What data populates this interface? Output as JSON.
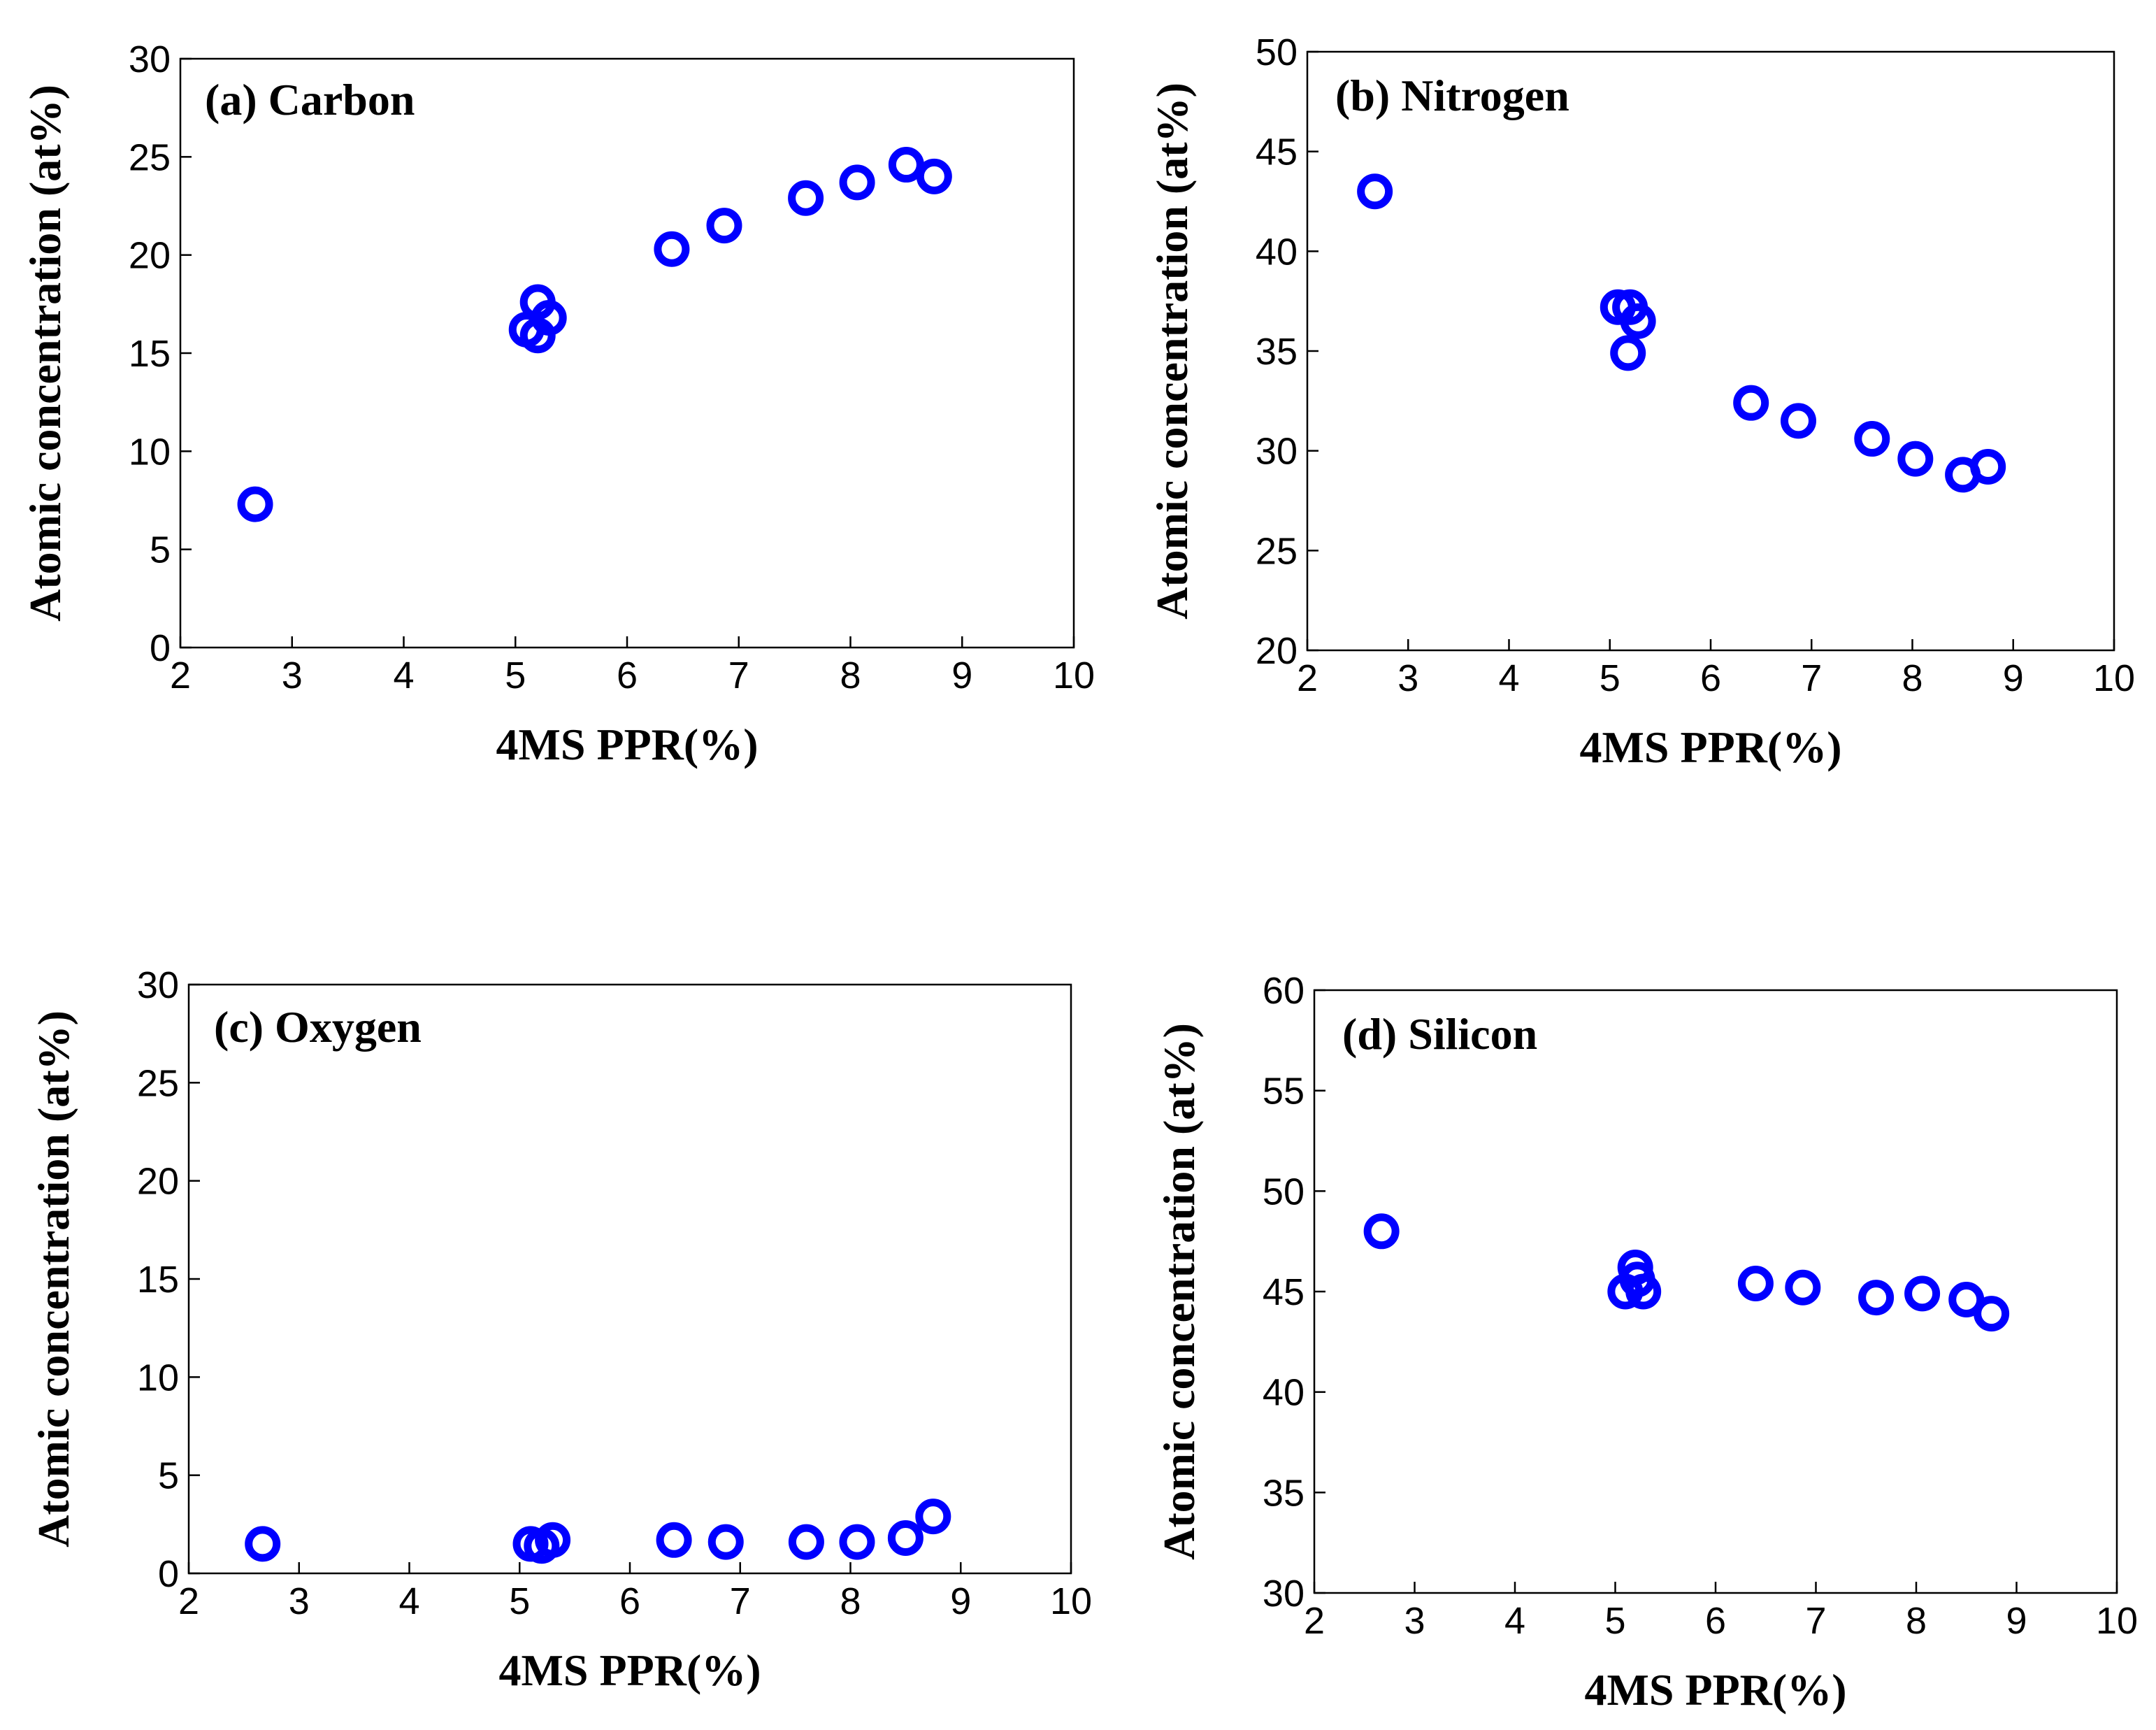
{
  "chart_data": [
    {
      "type": "scatter",
      "panel": "a",
      "title": "(a) Carbon",
      "xlabel": "4MS PPR(%)",
      "ylabel": "Atomic concentration (at%)",
      "xlim": [
        2,
        10
      ],
      "ylim": [
        0,
        30
      ],
      "xticks": [
        "2",
        "3",
        "4",
        "5",
        "6",
        "7",
        "8",
        "9",
        "10"
      ],
      "yticks": [
        "0",
        "5",
        "10",
        "15",
        "20",
        "25",
        "30"
      ],
      "marker_color": "#0000ff",
      "points": [
        {
          "x": 2.67,
          "y": 7.3
        },
        {
          "x": 5.1,
          "y": 16.2
        },
        {
          "x": 5.2,
          "y": 15.9
        },
        {
          "x": 5.3,
          "y": 16.8
        },
        {
          "x": 5.2,
          "y": 17.6
        },
        {
          "x": 6.4,
          "y": 20.3
        },
        {
          "x": 6.87,
          "y": 21.5
        },
        {
          "x": 7.6,
          "y": 22.9
        },
        {
          "x": 8.06,
          "y": 23.7
        },
        {
          "x": 8.5,
          "y": 24.6
        },
        {
          "x": 8.75,
          "y": 24.0
        }
      ]
    },
    {
      "type": "scatter",
      "panel": "b",
      "title": "(b) Nitrogen",
      "xlabel": "4MS PPR(%)",
      "ylabel": "Atomic concentration (at%)",
      "xlim": [
        2,
        10
      ],
      "ylim": [
        20,
        50
      ],
      "xticks": [
        "2",
        "3",
        "4",
        "5",
        "6",
        "7",
        "8",
        "9",
        "10"
      ],
      "yticks": [
        "20",
        "25",
        "30",
        "35",
        "40",
        "45",
        "50"
      ],
      "marker_color": "#0000ff",
      "points": [
        {
          "x": 2.67,
          "y": 43.0
        },
        {
          "x": 5.08,
          "y": 37.2
        },
        {
          "x": 5.2,
          "y": 37.2
        },
        {
          "x": 5.28,
          "y": 36.5
        },
        {
          "x": 5.18,
          "y": 34.9
        },
        {
          "x": 6.4,
          "y": 32.4
        },
        {
          "x": 6.87,
          "y": 31.5
        },
        {
          "x": 7.6,
          "y": 30.6
        },
        {
          "x": 8.03,
          "y": 29.6
        },
        {
          "x": 8.5,
          "y": 28.8
        },
        {
          "x": 8.75,
          "y": 29.2
        }
      ]
    },
    {
      "type": "scatter",
      "panel": "c",
      "title": "(c) Oxygen",
      "xlabel": "4MS PPR(%)",
      "ylabel": "Atomic concentration (at%)",
      "xlim": [
        2,
        10
      ],
      "ylim": [
        0,
        30
      ],
      "xticks": [
        "2",
        "3",
        "4",
        "5",
        "6",
        "7",
        "8",
        "9",
        "10"
      ],
      "yticks": [
        "0",
        "5",
        "10",
        "15",
        "20",
        "25",
        "30"
      ],
      "marker_color": "#0000ff",
      "points": [
        {
          "x": 2.67,
          "y": 1.5
        },
        {
          "x": 5.1,
          "y": 1.5
        },
        {
          "x": 5.2,
          "y": 1.4
        },
        {
          "x": 5.3,
          "y": 1.7
        },
        {
          "x": 6.4,
          "y": 1.7
        },
        {
          "x": 6.87,
          "y": 1.6
        },
        {
          "x": 7.6,
          "y": 1.6
        },
        {
          "x": 8.06,
          "y": 1.6
        },
        {
          "x": 8.5,
          "y": 1.8
        },
        {
          "x": 8.75,
          "y": 2.9
        }
      ]
    },
    {
      "type": "scatter",
      "panel": "d",
      "title": "(d) Silicon",
      "xlabel": "4MS PPR(%)",
      "ylabel": "Atomic concentration (at%)",
      "xlim": [
        2,
        10
      ],
      "ylim": [
        30,
        60
      ],
      "xticks": [
        "2",
        "3",
        "4",
        "5",
        "6",
        "7",
        "8",
        "9",
        "10"
      ],
      "yticks": [
        "30",
        "35",
        "40",
        "45",
        "50",
        "55",
        "60"
      ],
      "marker_color": "#0000ff",
      "points": [
        {
          "x": 2.67,
          "y": 48.0
        },
        {
          "x": 5.1,
          "y": 45.0
        },
        {
          "x": 5.2,
          "y": 46.2
        },
        {
          "x": 5.22,
          "y": 45.6
        },
        {
          "x": 5.28,
          "y": 45.0
        },
        {
          "x": 6.4,
          "y": 45.4
        },
        {
          "x": 6.87,
          "y": 45.2
        },
        {
          "x": 7.6,
          "y": 44.7
        },
        {
          "x": 8.06,
          "y": 44.9
        },
        {
          "x": 8.5,
          "y": 44.6
        },
        {
          "x": 8.75,
          "y": 43.9
        }
      ]
    }
  ]
}
